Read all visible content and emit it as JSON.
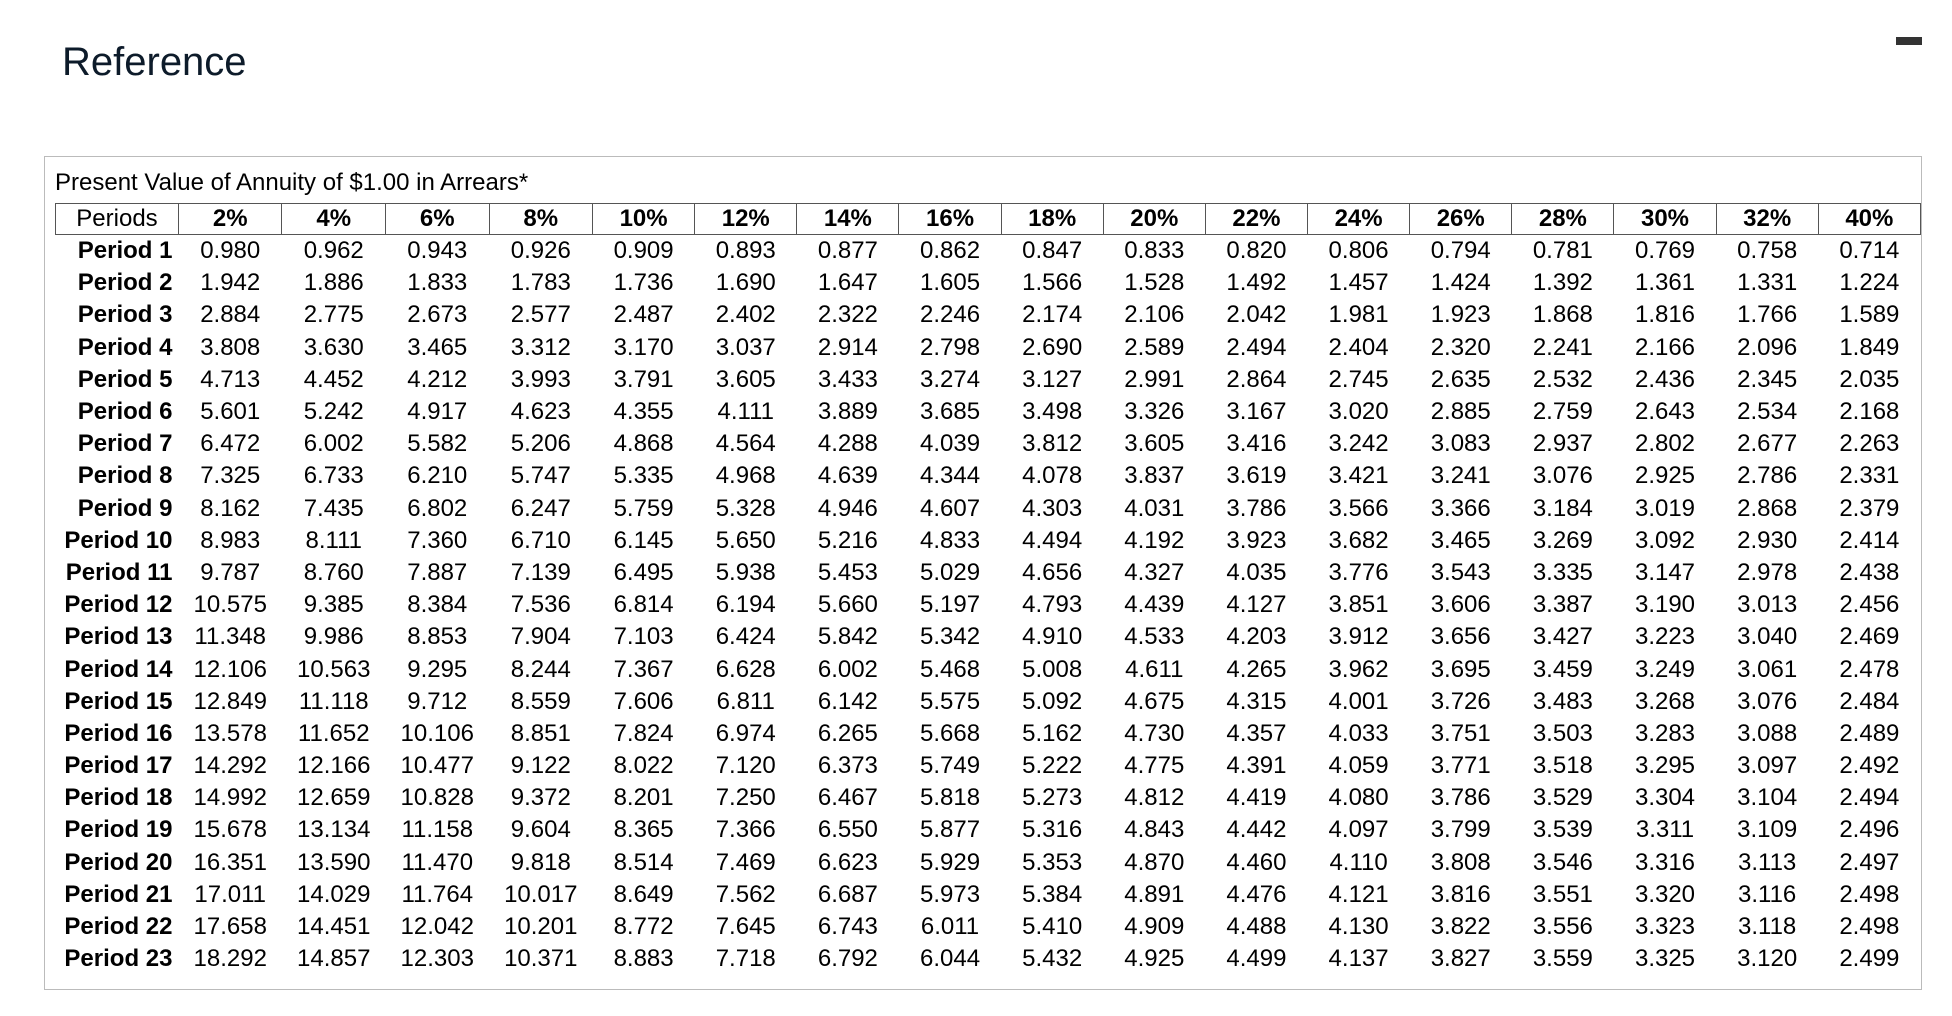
{
  "header": {
    "title": "Reference"
  },
  "table": {
    "caption": "Present Value of Annuity of $1.00 in Arrears*",
    "columns": [
      "Periods",
      "2%",
      "4%",
      "6%",
      "8%",
      "10%",
      "12%",
      "14%",
      "16%",
      "18%",
      "20%",
      "22%",
      "24%",
      "26%",
      "28%",
      "30%",
      "32%",
      "40%"
    ],
    "rows": [
      [
        "Period 1",
        "0.980",
        "0.962",
        "0.943",
        "0.926",
        "0.909",
        "0.893",
        "0.877",
        "0.862",
        "0.847",
        "0.833",
        "0.820",
        "0.806",
        "0.794",
        "0.781",
        "0.769",
        "0.758",
        "0.714"
      ],
      [
        "Period 2",
        "1.942",
        "1.886",
        "1.833",
        "1.783",
        "1.736",
        "1.690",
        "1.647",
        "1.605",
        "1.566",
        "1.528",
        "1.492",
        "1.457",
        "1.424",
        "1.392",
        "1.361",
        "1.331",
        "1.224"
      ],
      [
        "Period 3",
        "2.884",
        "2.775",
        "2.673",
        "2.577",
        "2.487",
        "2.402",
        "2.322",
        "2.246",
        "2.174",
        "2.106",
        "2.042",
        "1.981",
        "1.923",
        "1.868",
        "1.816",
        "1.766",
        "1.589"
      ],
      [
        "Period 4",
        "3.808",
        "3.630",
        "3.465",
        "3.312",
        "3.170",
        "3.037",
        "2.914",
        "2.798",
        "2.690",
        "2.589",
        "2.494",
        "2.404",
        "2.320",
        "2.241",
        "2.166",
        "2.096",
        "1.849"
      ],
      [
        "Period 5",
        "4.713",
        "4.452",
        "4.212",
        "3.993",
        "3.791",
        "3.605",
        "3.433",
        "3.274",
        "3.127",
        "2.991",
        "2.864",
        "2.745",
        "2.635",
        "2.532",
        "2.436",
        "2.345",
        "2.035"
      ],
      [
        "Period 6",
        "5.601",
        "5.242",
        "4.917",
        "4.623",
        "4.355",
        "4.111",
        "3.889",
        "3.685",
        "3.498",
        "3.326",
        "3.167",
        "3.020",
        "2.885",
        "2.759",
        "2.643",
        "2.534",
        "2.168"
      ],
      [
        "Period 7",
        "6.472",
        "6.002",
        "5.582",
        "5.206",
        "4.868",
        "4.564",
        "4.288",
        "4.039",
        "3.812",
        "3.605",
        "3.416",
        "3.242",
        "3.083",
        "2.937",
        "2.802",
        "2.677",
        "2.263"
      ],
      [
        "Period 8",
        "7.325",
        "6.733",
        "6.210",
        "5.747",
        "5.335",
        "4.968",
        "4.639",
        "4.344",
        "4.078",
        "3.837",
        "3.619",
        "3.421",
        "3.241",
        "3.076",
        "2.925",
        "2.786",
        "2.331"
      ],
      [
        "Period 9",
        "8.162",
        "7.435",
        "6.802",
        "6.247",
        "5.759",
        "5.328",
        "4.946",
        "4.607",
        "4.303",
        "4.031",
        "3.786",
        "3.566",
        "3.366",
        "3.184",
        "3.019",
        "2.868",
        "2.379"
      ],
      [
        "Period 10",
        "8.983",
        "8.111",
        "7.360",
        "6.710",
        "6.145",
        "5.650",
        "5.216",
        "4.833",
        "4.494",
        "4.192",
        "3.923",
        "3.682",
        "3.465",
        "3.269",
        "3.092",
        "2.930",
        "2.414"
      ],
      [
        "Period 11",
        "9.787",
        "8.760",
        "7.887",
        "7.139",
        "6.495",
        "5.938",
        "5.453",
        "5.029",
        "4.656",
        "4.327",
        "4.035",
        "3.776",
        "3.543",
        "3.335",
        "3.147",
        "2.978",
        "2.438"
      ],
      [
        "Period 12",
        "10.575",
        "9.385",
        "8.384",
        "7.536",
        "6.814",
        "6.194",
        "5.660",
        "5.197",
        "4.793",
        "4.439",
        "4.127",
        "3.851",
        "3.606",
        "3.387",
        "3.190",
        "3.013",
        "2.456"
      ],
      [
        "Period 13",
        "11.348",
        "9.986",
        "8.853",
        "7.904",
        "7.103",
        "6.424",
        "5.842",
        "5.342",
        "4.910",
        "4.533",
        "4.203",
        "3.912",
        "3.656",
        "3.427",
        "3.223",
        "3.040",
        "2.469"
      ],
      [
        "Period 14",
        "12.106",
        "10.563",
        "9.295",
        "8.244",
        "7.367",
        "6.628",
        "6.002",
        "5.468",
        "5.008",
        "4.611",
        "4.265",
        "3.962",
        "3.695",
        "3.459",
        "3.249",
        "3.061",
        "2.478"
      ],
      [
        "Period 15",
        "12.849",
        "11.118",
        "9.712",
        "8.559",
        "7.606",
        "6.811",
        "6.142",
        "5.575",
        "5.092",
        "4.675",
        "4.315",
        "4.001",
        "3.726",
        "3.483",
        "3.268",
        "3.076",
        "2.484"
      ],
      [
        "Period 16",
        "13.578",
        "11.652",
        "10.106",
        "8.851",
        "7.824",
        "6.974",
        "6.265",
        "5.668",
        "5.162",
        "4.730",
        "4.357",
        "4.033",
        "3.751",
        "3.503",
        "3.283",
        "3.088",
        "2.489"
      ],
      [
        "Period 17",
        "14.292",
        "12.166",
        "10.477",
        "9.122",
        "8.022",
        "7.120",
        "6.373",
        "5.749",
        "5.222",
        "4.775",
        "4.391",
        "4.059",
        "3.771",
        "3.518",
        "3.295",
        "3.097",
        "2.492"
      ],
      [
        "Period 18",
        "14.992",
        "12.659",
        "10.828",
        "9.372",
        "8.201",
        "7.250",
        "6.467",
        "5.818",
        "5.273",
        "4.812",
        "4.419",
        "4.080",
        "3.786",
        "3.529",
        "3.304",
        "3.104",
        "2.494"
      ],
      [
        "Period 19",
        "15.678",
        "13.134",
        "11.158",
        "9.604",
        "8.365",
        "7.366",
        "6.550",
        "5.877",
        "5.316",
        "4.843",
        "4.442",
        "4.097",
        "3.799",
        "3.539",
        "3.311",
        "3.109",
        "2.496"
      ],
      [
        "Period 20",
        "16.351",
        "13.590",
        "11.470",
        "9.818",
        "8.514",
        "7.469",
        "6.623",
        "5.929",
        "5.353",
        "4.870",
        "4.460",
        "4.110",
        "3.808",
        "3.546",
        "3.316",
        "3.113",
        "2.497"
      ],
      [
        "Period 21",
        "17.011",
        "14.029",
        "11.764",
        "10.017",
        "8.649",
        "7.562",
        "6.687",
        "5.973",
        "5.384",
        "4.891",
        "4.476",
        "4.121",
        "3.816",
        "3.551",
        "3.320",
        "3.116",
        "2.498"
      ],
      [
        "Period 22",
        "17.658",
        "14.451",
        "12.042",
        "10.201",
        "8.772",
        "7.645",
        "6.743",
        "6.011",
        "5.410",
        "4.909",
        "4.488",
        "4.130",
        "3.822",
        "3.556",
        "3.323",
        "3.118",
        "2.498"
      ],
      [
        "Period 23",
        "18.292",
        "14.857",
        "12.303",
        "10.371",
        "8.883",
        "7.718",
        "6.792",
        "6.044",
        "5.432",
        "4.925",
        "4.499",
        "4.137",
        "3.827",
        "3.559",
        "3.325",
        "3.120",
        "2.499"
      ]
    ]
  }
}
